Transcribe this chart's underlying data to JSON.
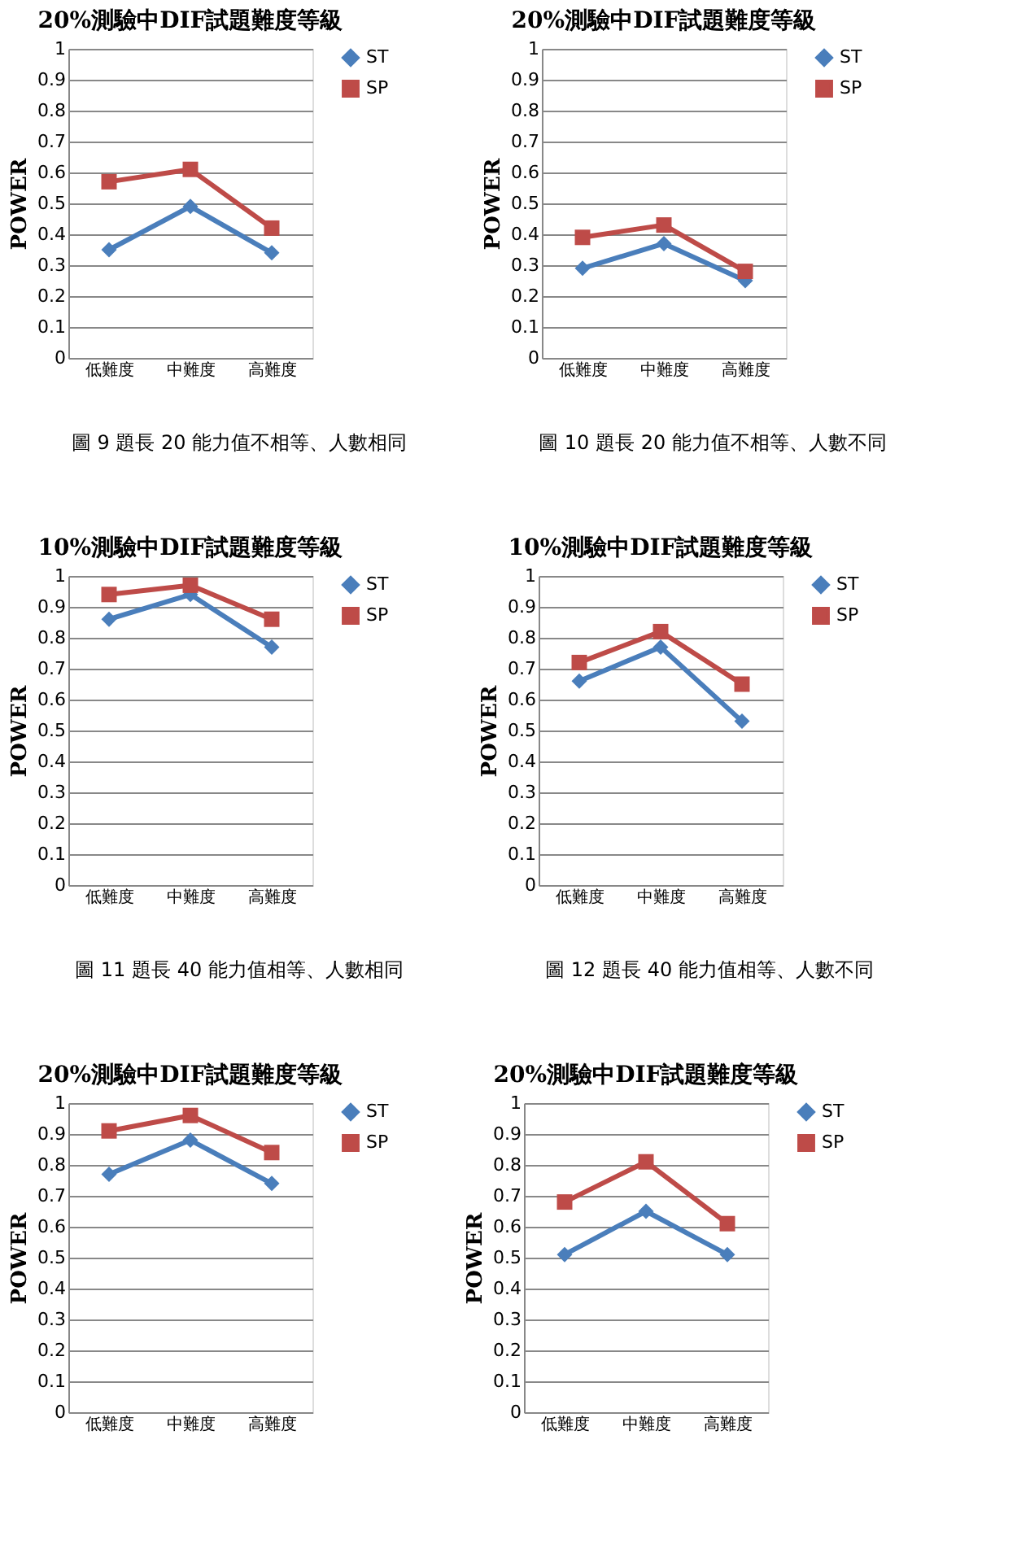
{
  "chart_data": [
    {
      "type": "line",
      "title": "20%測驗中DIF試題難度等級",
      "ylabel": "POWER",
      "categories": [
        "低難度",
        "中難度",
        "高難度"
      ],
      "ylim": [
        0,
        1
      ],
      "yticks": [
        0,
        0.1,
        0.2,
        0.3,
        0.4,
        0.5,
        0.6,
        0.7,
        0.8,
        0.9,
        1
      ],
      "grid": "y",
      "legend": "right",
      "annotations": [
        "圖 9 題長 20 能力值不相等、人數相同"
      ],
      "series": [
        {
          "name": "ST",
          "color": "#4a7ebb",
          "marker": "diamond",
          "values": [
            0.35,
            0.49,
            0.34
          ]
        },
        {
          "name": "SP",
          "color": "#be4b48",
          "marker": "square",
          "values": [
            0.57,
            0.61,
            0.42
          ]
        }
      ]
    },
    {
      "type": "line",
      "title": "20%測驗中DIF試題難度等級",
      "ylabel": "POWER",
      "categories": [
        "低難度",
        "中難度",
        "高難度"
      ],
      "ylim": [
        0,
        1
      ],
      "yticks": [
        0,
        0.1,
        0.2,
        0.3,
        0.4,
        0.5,
        0.6,
        0.7,
        0.8,
        0.9,
        1
      ],
      "grid": "y",
      "legend": "right",
      "annotations": [
        "圖 10 題長 20 能力值不相等、人數不同"
      ],
      "series": [
        {
          "name": "ST",
          "color": "#4a7ebb",
          "marker": "diamond",
          "values": [
            0.29,
            0.37,
            0.25
          ]
        },
        {
          "name": "SP",
          "color": "#be4b48",
          "marker": "square",
          "values": [
            0.39,
            0.43,
            0.28
          ]
        }
      ]
    },
    {
      "type": "line",
      "title": "10%測驗中DIF試題難度等級",
      "ylabel": "POWER",
      "categories": [
        "低難度",
        "中難度",
        "高難度"
      ],
      "ylim": [
        0,
        1
      ],
      "yticks": [
        0,
        0.1,
        0.2,
        0.3,
        0.4,
        0.5,
        0.6,
        0.7,
        0.8,
        0.9,
        1
      ],
      "grid": "y",
      "legend": "right",
      "annotations": [
        "圖 11 題長 40 能力值相等、人數相同"
      ],
      "series": [
        {
          "name": "ST",
          "color": "#4a7ebb",
          "marker": "diamond",
          "values": [
            0.86,
            0.94,
            0.77
          ]
        },
        {
          "name": "SP",
          "color": "#be4b48",
          "marker": "square",
          "values": [
            0.94,
            0.97,
            0.86
          ]
        }
      ]
    },
    {
      "type": "line",
      "title": "10%測驗中DIF試題難度等級",
      "ylabel": "POWER",
      "categories": [
        "低難度",
        "中難度",
        "高難度"
      ],
      "ylim": [
        0,
        1
      ],
      "yticks": [
        0,
        0.1,
        0.2,
        0.3,
        0.4,
        0.5,
        0.6,
        0.7,
        0.8,
        0.9,
        1
      ],
      "grid": "y",
      "legend": "right",
      "annotations": [
        "圖 12 題長 40 能力值相等、人數不同"
      ],
      "series": [
        {
          "name": "ST",
          "color": "#4a7ebb",
          "marker": "diamond",
          "values": [
            0.66,
            0.77,
            0.53
          ]
        },
        {
          "name": "SP",
          "color": "#be4b48",
          "marker": "square",
          "values": [
            0.72,
            0.82,
            0.65
          ]
        }
      ]
    },
    {
      "type": "line",
      "title": "20%測驗中DIF試題難度等級",
      "ylabel": "POWER",
      "categories": [
        "低難度",
        "中難度",
        "高難度"
      ],
      "ylim": [
        0,
        1
      ],
      "yticks": [
        0,
        0.1,
        0.2,
        0.3,
        0.4,
        0.5,
        0.6,
        0.7,
        0.8,
        0.9,
        1
      ],
      "grid": "y",
      "legend": "right",
      "series": [
        {
          "name": "ST",
          "color": "#4a7ebb",
          "marker": "diamond",
          "values": [
            0.77,
            0.88,
            0.74
          ]
        },
        {
          "name": "SP",
          "color": "#be4b48",
          "marker": "square",
          "values": [
            0.91,
            0.96,
            0.84
          ]
        }
      ]
    },
    {
      "type": "line",
      "title": "20%測驗中DIF試題難度等級",
      "ylabel": "POWER",
      "categories": [
        "低難度",
        "中難度",
        "高難度"
      ],
      "ylim": [
        0,
        1
      ],
      "yticks": [
        0,
        0.1,
        0.2,
        0.3,
        0.4,
        0.5,
        0.6,
        0.7,
        0.8,
        0.9,
        1
      ],
      "grid": "y",
      "legend": "right",
      "series": [
        {
          "name": "ST",
          "color": "#4a7ebb",
          "marker": "diamond",
          "values": [
            0.51,
            0.65,
            0.51
          ]
        },
        {
          "name": "SP",
          "color": "#be4b48",
          "marker": "square",
          "values": [
            0.68,
            0.81,
            0.61
          ]
        }
      ]
    }
  ]
}
